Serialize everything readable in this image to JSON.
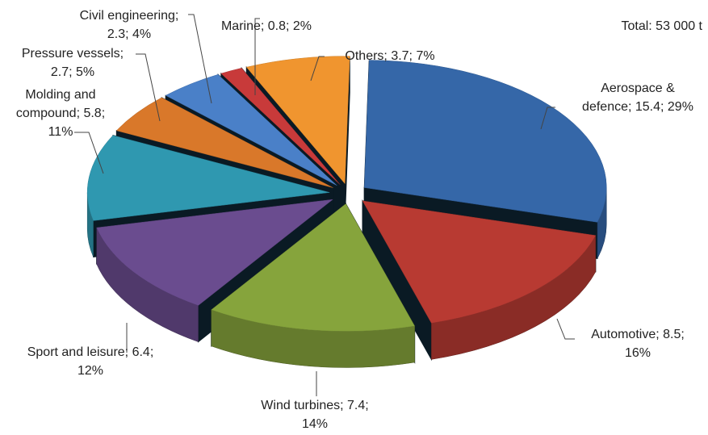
{
  "chart_data": {
    "type": "pie3d",
    "annotation": "Total: 53 000 t",
    "values": [
      15.4,
      8.5,
      7.4,
      6.4,
      5.8,
      2.7,
      2.3,
      0.8,
      3.7
    ],
    "value_labels": [
      [
        "Aerospace &",
        "defence; 15.4; 29%"
      ],
      [
        "Automotive; 8.5;",
        "16%"
      ],
      [
        "Wind turbines; 7.4;",
        "14%"
      ],
      [
        "Sport and leisure; 6.4;",
        "12%"
      ],
      [
        "Molding and",
        "compound; 5.8;",
        "11%"
      ],
      [
        "Pressure vessels;",
        "2.7; 5%"
      ],
      [
        "Civil engineering;",
        "2.3; 4%"
      ],
      [
        "Marine; 0.8; 2%"
      ],
      [
        "Others; 3.7; 7%"
      ]
    ],
    "colors": [
      "#3567a8",
      "#b83a32",
      "#86a43c",
      "#6a4c8f",
      "#2f98b0",
      "#d9782a",
      "#4a80c8",
      "#c83a3a",
      "#f0952f"
    ]
  }
}
